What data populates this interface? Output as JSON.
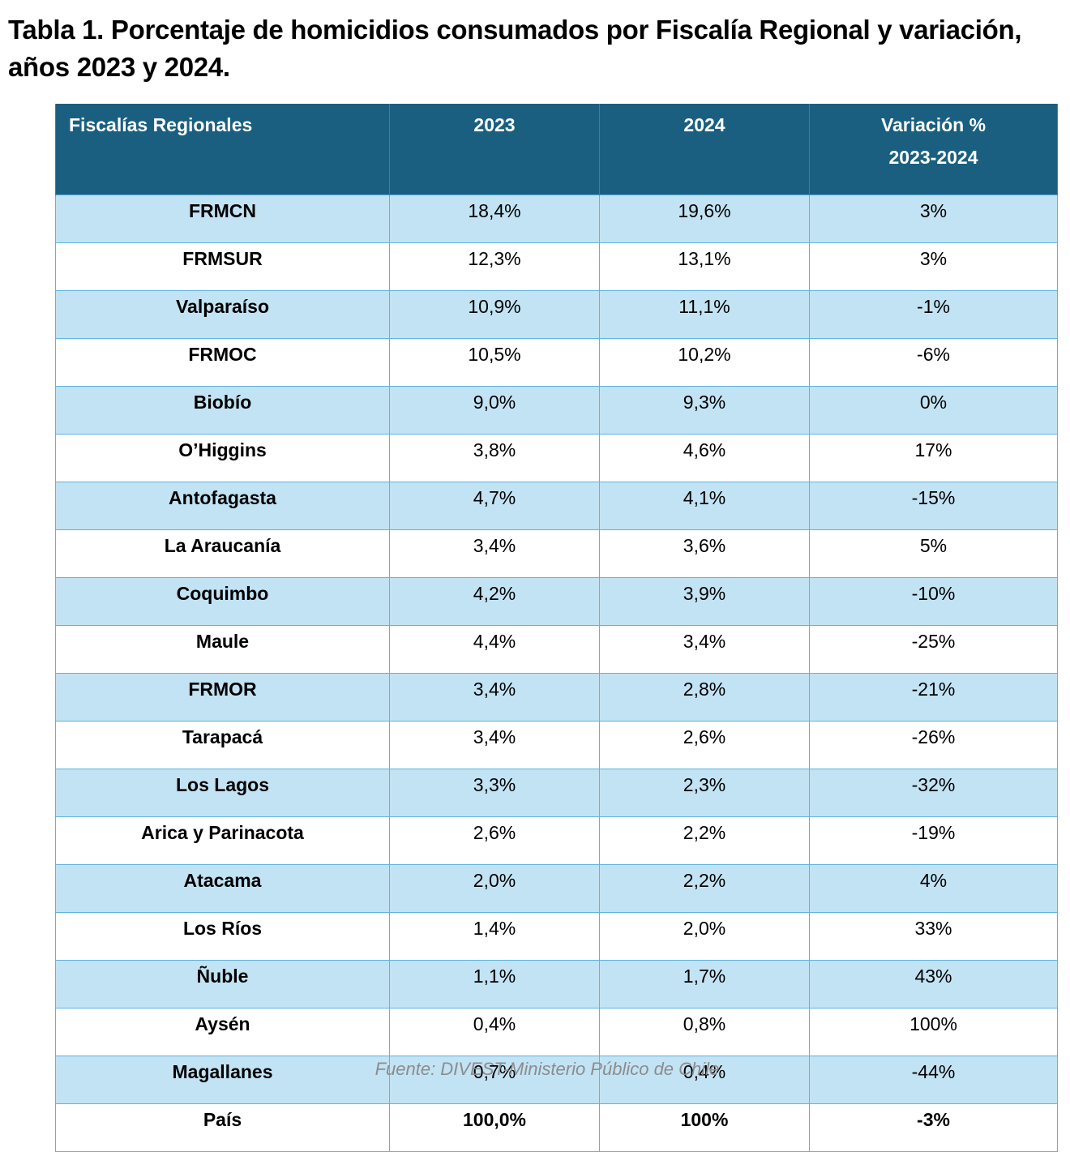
{
  "title": "Tabla 1. Porcentaje de homicidios consumados por Fiscalía Regional y variación, años 2023 y 2024.",
  "table": {
    "headers": {
      "region": "Fiscalías Regionales",
      "y2023": "2023",
      "y2024": "2024",
      "variation_line1": "Variación %",
      "variation_line2": "2023-2024"
    },
    "rows": [
      {
        "region": "FRMCN",
        "y2023": "18,4%",
        "y2024": "19,6%",
        "variation": "3%"
      },
      {
        "region": "FRMSUR",
        "y2023": "12,3%",
        "y2024": "13,1%",
        "variation": "3%"
      },
      {
        "region": "Valparaíso",
        "y2023": "10,9%",
        "y2024": "11,1%",
        "variation": "-1%"
      },
      {
        "region": "FRMOC",
        "y2023": "10,5%",
        "y2024": "10,2%",
        "variation": "-6%"
      },
      {
        "region": "Biobío",
        "y2023": "9,0%",
        "y2024": "9,3%",
        "variation": "0%"
      },
      {
        "region": "O’Higgins",
        "y2023": "3,8%",
        "y2024": "4,6%",
        "variation": "17%"
      },
      {
        "region": "Antofagasta",
        "y2023": "4,7%",
        "y2024": "4,1%",
        "variation": "-15%"
      },
      {
        "region": "La Araucanía",
        "y2023": "3,4%",
        "y2024": "3,6%",
        "variation": "5%"
      },
      {
        "region": "Coquimbo",
        "y2023": "4,2%",
        "y2024": "3,9%",
        "variation": "-10%"
      },
      {
        "region": "Maule",
        "y2023": "4,4%",
        "y2024": "3,4%",
        "variation": "-25%"
      },
      {
        "region": "FRMOR",
        "y2023": "3,4%",
        "y2024": "2,8%",
        "variation": "-21%"
      },
      {
        "region": "Tarapacá",
        "y2023": "3,4%",
        "y2024": "2,6%",
        "variation": "-26%"
      },
      {
        "region": "Los Lagos",
        "y2023": "3,3%",
        "y2024": "2,3%",
        "variation": "-32%"
      },
      {
        "region": "Arica y Parinacota",
        "y2023": "2,6%",
        "y2024": "2,2%",
        "variation": "-19%"
      },
      {
        "region": "Atacama",
        "y2023": "2,0%",
        "y2024": "2,2%",
        "variation": "4%"
      },
      {
        "region": "Los Ríos",
        "y2023": "1,4%",
        "y2024": "2,0%",
        "variation": "33%"
      },
      {
        "region": "Ñuble",
        "y2023": "1,1%",
        "y2024": "1,7%",
        "variation": "43%"
      },
      {
        "region": "Aysén",
        "y2023": "0,4%",
        "y2024": "0,8%",
        "variation": "100%"
      },
      {
        "region": "Magallanes",
        "y2023": "0,7%",
        "y2024": "0,4%",
        "variation": "-44%"
      }
    ],
    "total": {
      "region": "País",
      "y2023": "100,0%",
      "y2024": "100%",
      "variation": "-3%"
    }
  },
  "source": "Fuente: DIVEST-Ministerio Público de Chile.",
  "colors": {
    "header_bg": "#1a5f80",
    "row_stripe": "#c2e3f4",
    "border": "#5fb3e0",
    "source_text": "#8c8c8c"
  }
}
